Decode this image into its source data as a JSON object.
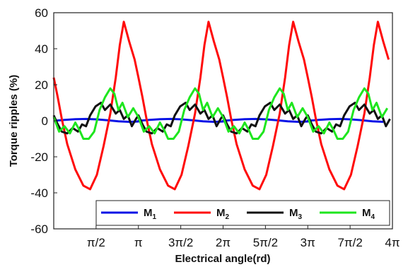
{
  "chart_data": {
    "type": "line",
    "title": "",
    "xlabel": "Electrical angle(rd)",
    "ylabel": "Torque ripples (%)",
    "xlim": [
      0,
      12.566
    ],
    "ylim": [
      -60,
      60
    ],
    "grid": false,
    "legend_position": "bottom",
    "x_ticks": [
      {
        "value": 1.5708,
        "label": "π/2"
      },
      {
        "value": 3.1416,
        "label": "π"
      },
      {
        "value": 4.7124,
        "label": "3π/2"
      },
      {
        "value": 6.2832,
        "label": "2π"
      },
      {
        "value": 7.854,
        "label": "5π/2"
      },
      {
        "value": 9.4248,
        "label": "3π"
      },
      {
        "value": 10.9956,
        "label": "7π/2"
      },
      {
        "value": 12.5664,
        "label": "4π"
      }
    ],
    "y_ticks": [
      {
        "value": 60,
        "label": "60"
      },
      {
        "value": 40,
        "label": "40"
      },
      {
        "value": 20,
        "label": "20"
      },
      {
        "value": 0,
        "label": "0"
      },
      {
        "value": -20,
        "label": "-20"
      },
      {
        "value": -40,
        "label": "-40"
      },
      {
        "value": -60,
        "label": "-60"
      }
    ],
    "period": 3.1416,
    "series": [
      {
        "name": "M",
        "sub": "1",
        "color": "#0a14e6",
        "x": [
          0,
          0.4,
          0.8,
          1.2,
          1.6,
          2.0,
          2.4,
          2.8,
          3.1416
        ],
        "values": [
          0,
          0.5,
          0.9,
          1.0,
          0.8,
          0.3,
          -0.3,
          -0.6,
          -0.4
        ]
      },
      {
        "name": "M",
        "sub": "2",
        "color": "#ff0a0a",
        "x": [
          0,
          0.15,
          0.3,
          0.5,
          0.8,
          1.1,
          1.35,
          1.6,
          1.85,
          2.1,
          2.3,
          2.45,
          2.6,
          2.8,
          3.0,
          3.1416
        ],
        "values": [
          24,
          13,
          1,
          -13,
          -27,
          -36,
          -38,
          -30,
          -14,
          4,
          24,
          42,
          55,
          44,
          34,
          24
        ]
      },
      {
        "name": "M",
        "sub": "3",
        "color": "#111111",
        "x": [
          0,
          0.15,
          0.3,
          0.5,
          0.7,
          0.9,
          1.05,
          1.2,
          1.35,
          1.55,
          1.75,
          1.9,
          2.1,
          2.3,
          2.45,
          2.6,
          2.75,
          2.9,
          3.05,
          3.1416
        ],
        "values": [
          3,
          -2,
          -6,
          -7,
          -4,
          -6,
          -2,
          -3,
          3,
          8,
          10,
          6,
          9,
          4,
          6,
          1,
          3,
          -3,
          1,
          3
        ]
      },
      {
        "name": "M",
        "sub": "4",
        "color": "#1ee61e",
        "x": [
          0,
          0.2,
          0.4,
          0.6,
          0.8,
          0.95,
          1.1,
          1.3,
          1.5,
          1.7,
          1.9,
          2.1,
          2.25,
          2.4,
          2.55,
          2.75,
          2.95,
          3.1416
        ],
        "values": [
          2,
          -6,
          -3,
          -7,
          -1,
          -5,
          -10,
          -10,
          -6,
          6,
          13,
          18,
          15,
          6,
          10,
          2,
          7,
          2
        ]
      }
    ]
  }
}
